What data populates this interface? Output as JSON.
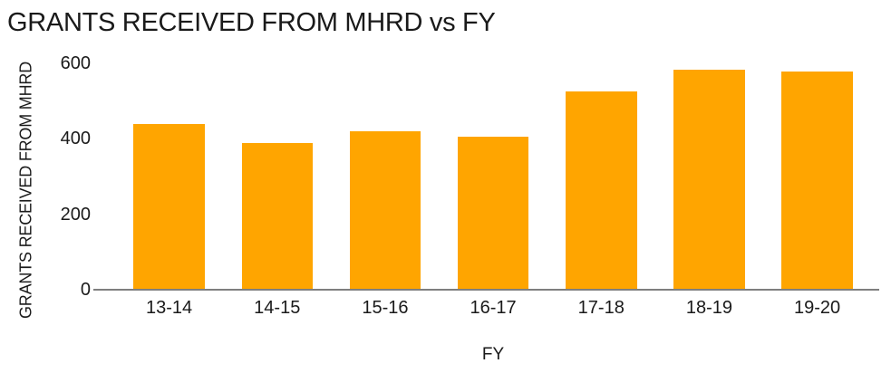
{
  "chart_data": {
    "type": "bar",
    "title": "GRANTS RECEIVED FROM MHRD vs FY",
    "xlabel": "FY",
    "ylabel": "GRANTS RECEIVED FROM MHRD",
    "categories": [
      "13-14",
      "14-15",
      "15-16",
      "16-17",
      "17-18",
      "18-19",
      "19-20"
    ],
    "values": [
      440,
      390,
      420,
      405,
      525,
      583,
      578
    ],
    "ylim": [
      0,
      600
    ],
    "yticks": [
      0,
      200,
      400,
      600
    ],
    "grid": false,
    "legend": false,
    "colors": {
      "bar": "#FFA500",
      "axis_line": "#7F7F7F",
      "text": "#1A1A1A",
      "background": "#FFFFFF"
    }
  }
}
